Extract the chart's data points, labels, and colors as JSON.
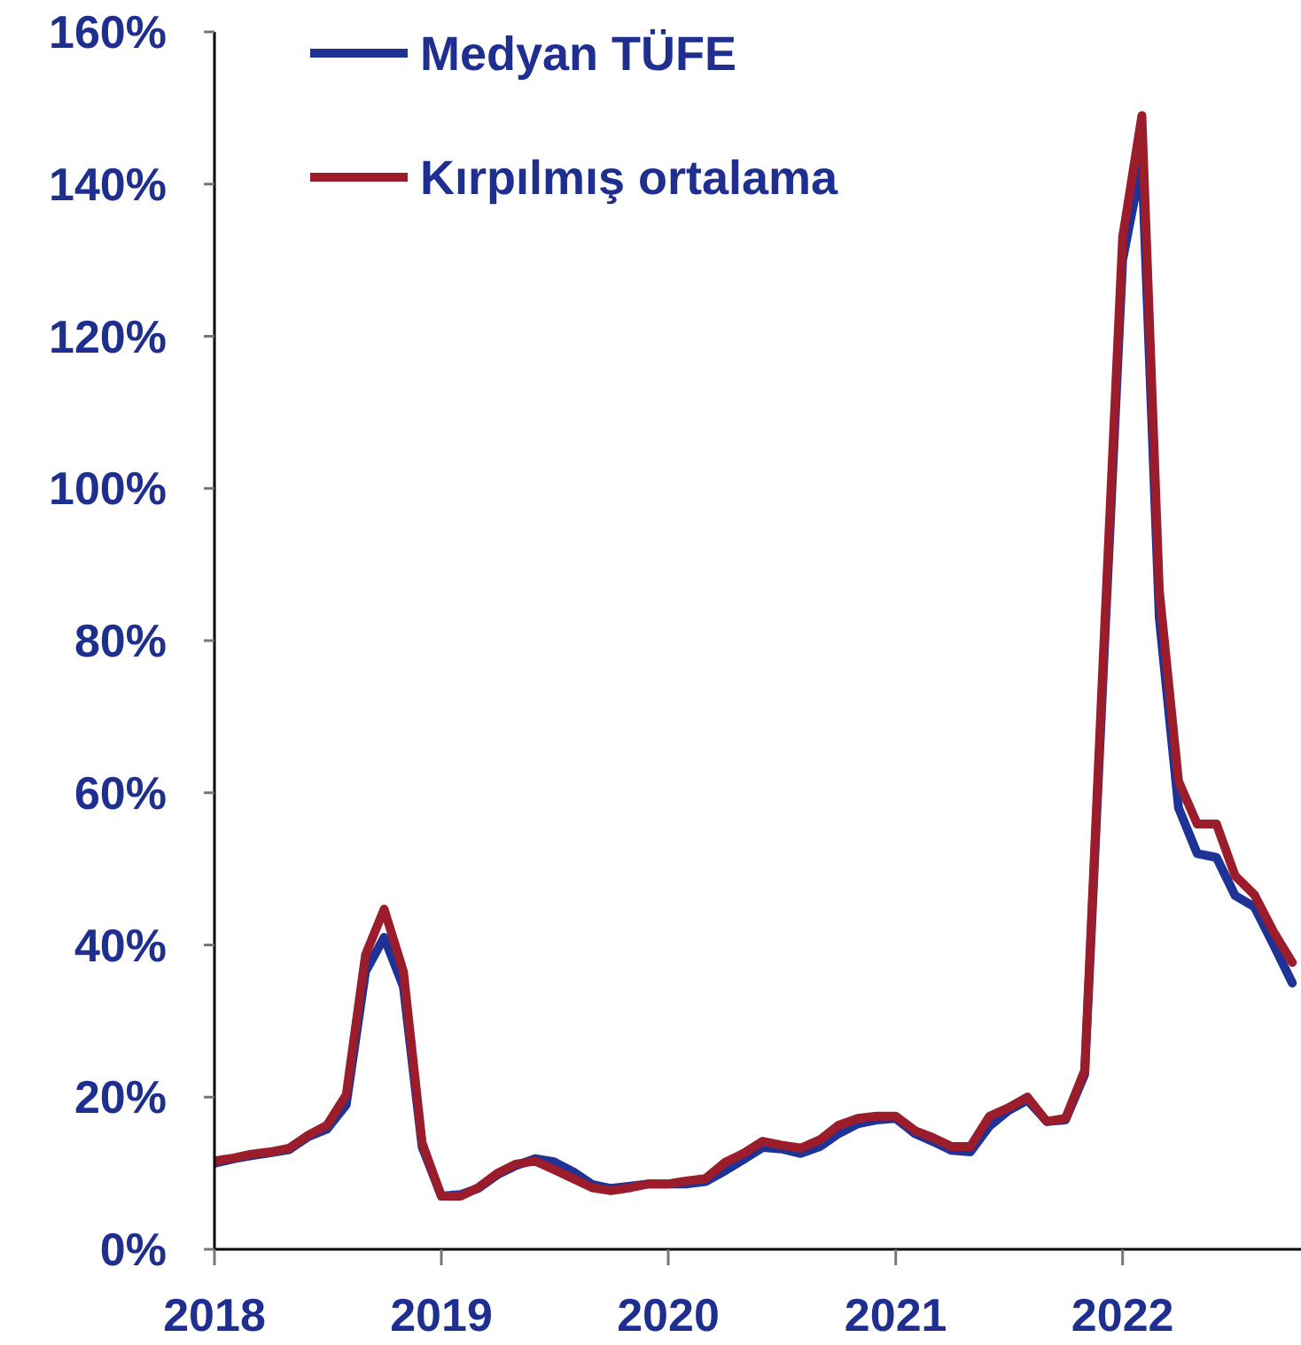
{
  "chart_data": {
    "type": "line",
    "legend": "top left",
    "grid": false,
    "line_style": "solid",
    "marker": "none",
    "x": [
      "2018-01",
      "2018-02",
      "2018-03",
      "2018-04",
      "2018-05",
      "2018-06",
      "2018-07",
      "2018-08",
      "2018-09",
      "2018-10",
      "2018-11",
      "2018-12",
      "2019-01",
      "2019-02",
      "2019-03",
      "2019-04",
      "2019-05",
      "2019-06",
      "2019-07",
      "2019-08",
      "2019-09",
      "2019-10",
      "2019-11",
      "2019-12",
      "2020-01",
      "2020-02",
      "2020-03",
      "2020-04",
      "2020-05",
      "2020-06",
      "2020-07",
      "2020-08",
      "2020-09",
      "2020-10",
      "2020-11",
      "2020-12",
      "2021-01",
      "2021-02",
      "2021-03",
      "2021-04",
      "2021-05",
      "2021-06",
      "2021-07",
      "2021-08",
      "2021-09",
      "2021-10",
      "2021-11",
      "2021-12",
      "2022-01",
      "2022-02",
      "2022-03",
      "2022-04",
      "2022-05",
      "2022-06",
      "2022-07",
      "2022-08",
      "2022-09",
      "2022-10"
    ],
    "xlim": [
      "2018-01",
      "2022-10-15"
    ],
    "xticks": [
      {
        "value": "2018",
        "label": "2018"
      },
      {
        "value": "2019",
        "label": "2019"
      },
      {
        "value": "2020",
        "label": "2020"
      },
      {
        "value": "2021",
        "label": "2021"
      },
      {
        "value": "2022",
        "label": "2022"
      }
    ],
    "ylim": [
      0,
      160
    ],
    "yticks": [
      {
        "value": 0,
        "label": "0%"
      },
      {
        "value": 20,
        "label": "20%"
      },
      {
        "value": 40,
        "label": "40%"
      },
      {
        "value": 60,
        "label": "60%"
      },
      {
        "value": 80,
        "label": "80%"
      },
      {
        "value": 100,
        "label": "100%"
      },
      {
        "value": 120,
        "label": "120%"
      },
      {
        "value": 140,
        "label": "140%"
      },
      {
        "value": 160,
        "label": "160%"
      }
    ],
    "series": [
      {
        "name": "Medyan TÜFE",
        "color": "#1f3396",
        "values": [
          11.3,
          11.9,
          12.3,
          12.7,
          13.1,
          14.8,
          15.8,
          19,
          36.5,
          41,
          34.5,
          13.5,
          7,
          7.2,
          8,
          9.8,
          11,
          11.9,
          11.5,
          10.2,
          8.5,
          8,
          8.3,
          8.6,
          8.6,
          8.6,
          8.9,
          10.3,
          11.8,
          13.4,
          13.2,
          12.6,
          13.5,
          15.2,
          16.5,
          17,
          17.2,
          15.2,
          14.2,
          13,
          12.8,
          16.2,
          18.2,
          19.6,
          16.8,
          17,
          23,
          76,
          130,
          143,
          83,
          58,
          52,
          51.5,
          46.5,
          45,
          40,
          35
        ]
      },
      {
        "name": "Kırpılmış ortalama",
        "color": "#9b1c2a",
        "values": [
          11.6,
          12,
          12.5,
          12.8,
          13.3,
          15,
          16.3,
          20.3,
          38.7,
          44.7,
          36.5,
          14,
          7,
          7,
          8.1,
          10,
          11.2,
          11.6,
          10.5,
          9.3,
          8.1,
          7.7,
          8.1,
          8.6,
          8.6,
          9,
          9.3,
          11.4,
          12.6,
          14.2,
          13.7,
          13.3,
          14.4,
          16.3,
          17.2,
          17.5,
          17.5,
          15.6,
          14.7,
          13.5,
          13.5,
          17.5,
          18.6,
          20,
          16.8,
          17.2,
          23.5,
          78,
          133,
          149,
          86.6,
          61.5,
          55.9,
          55.9,
          49.1,
          46.6,
          41.7,
          37.7
        ]
      }
    ]
  }
}
